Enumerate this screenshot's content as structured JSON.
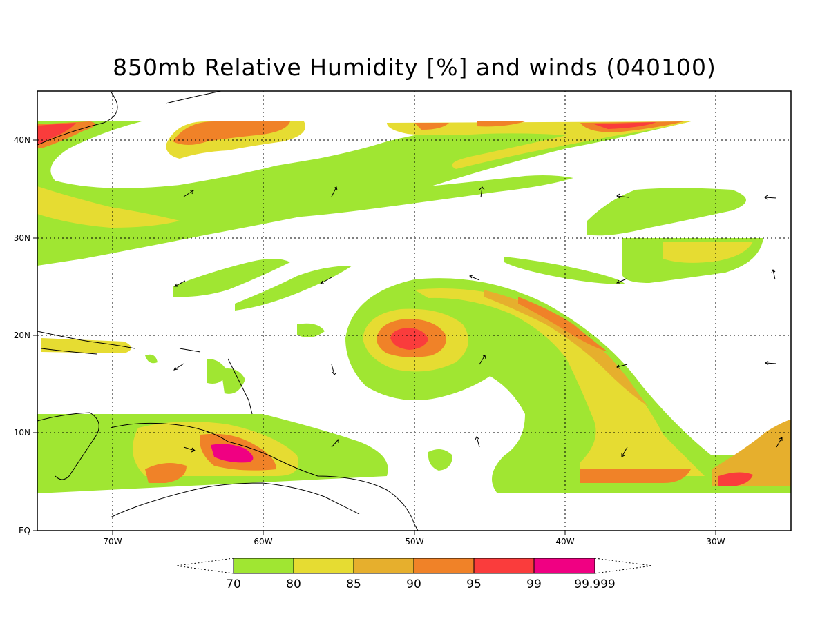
{
  "title": "850mb Relative Humidity [%] and winds (040100)",
  "lat_labels": [
    "40N",
    "30N",
    "20N",
    "10N",
    "EQ"
  ],
  "lon_labels": [
    "70W",
    "60W",
    "50W",
    "40W",
    "30W"
  ],
  "colorbar": {
    "labels": [
      "70",
      "80",
      "85",
      "90",
      "95",
      "99",
      "99.999"
    ],
    "colors": [
      "#a0e632",
      "#e6dc32",
      "#e6af2d",
      "#f08228",
      "#fa3c3c",
      "#f00082"
    ]
  },
  "map_data": {
    "variable": "850mb Relative Humidity",
    "units": "%",
    "lon_range": [
      -75,
      -25
    ],
    "lat_range": [
      0,
      45
    ]
  }
}
